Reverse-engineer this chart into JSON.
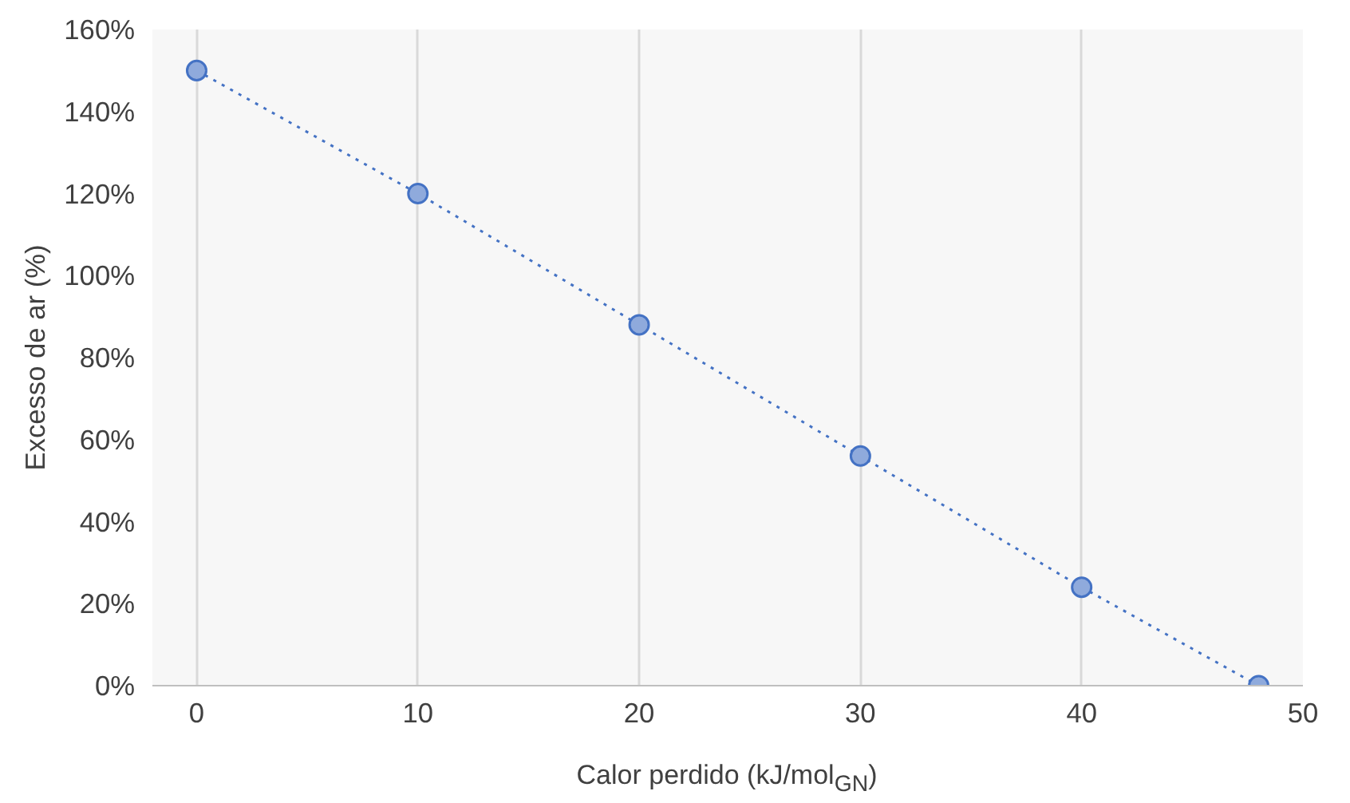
{
  "chart_data": {
    "type": "line",
    "xlabel": "Calor perdido (kJ/mol$_{GN}$)",
    "ylabel": "Excesso de ar (%)",
    "x": [
      0,
      10,
      20,
      30,
      40,
      48
    ],
    "series": [
      {
        "color": "#4472c4",
        "values": [
          150,
          120,
          88,
          56,
          24,
          0
        ]
      }
    ],
    "xlim": [
      -2,
      50
    ],
    "ylim": [
      0,
      160
    ],
    "xticks": [
      0,
      10,
      20,
      30,
      40,
      50
    ],
    "yticks": [
      {
        "value": 0,
        "label": "0%"
      },
      {
        "value": 20,
        "label": "20%"
      },
      {
        "value": 40,
        "label": "40%"
      },
      {
        "value": 60,
        "label": "60%"
      },
      {
        "value": 80,
        "label": "80%"
      },
      {
        "value": 100,
        "label": "100%"
      },
      {
        "value": 120,
        "label": "120%"
      },
      {
        "value": 140,
        "label": "140%"
      },
      {
        "value": 160,
        "label": "160%"
      }
    ],
    "grid": "x",
    "marker": "circle",
    "line_style": "dotted"
  }
}
